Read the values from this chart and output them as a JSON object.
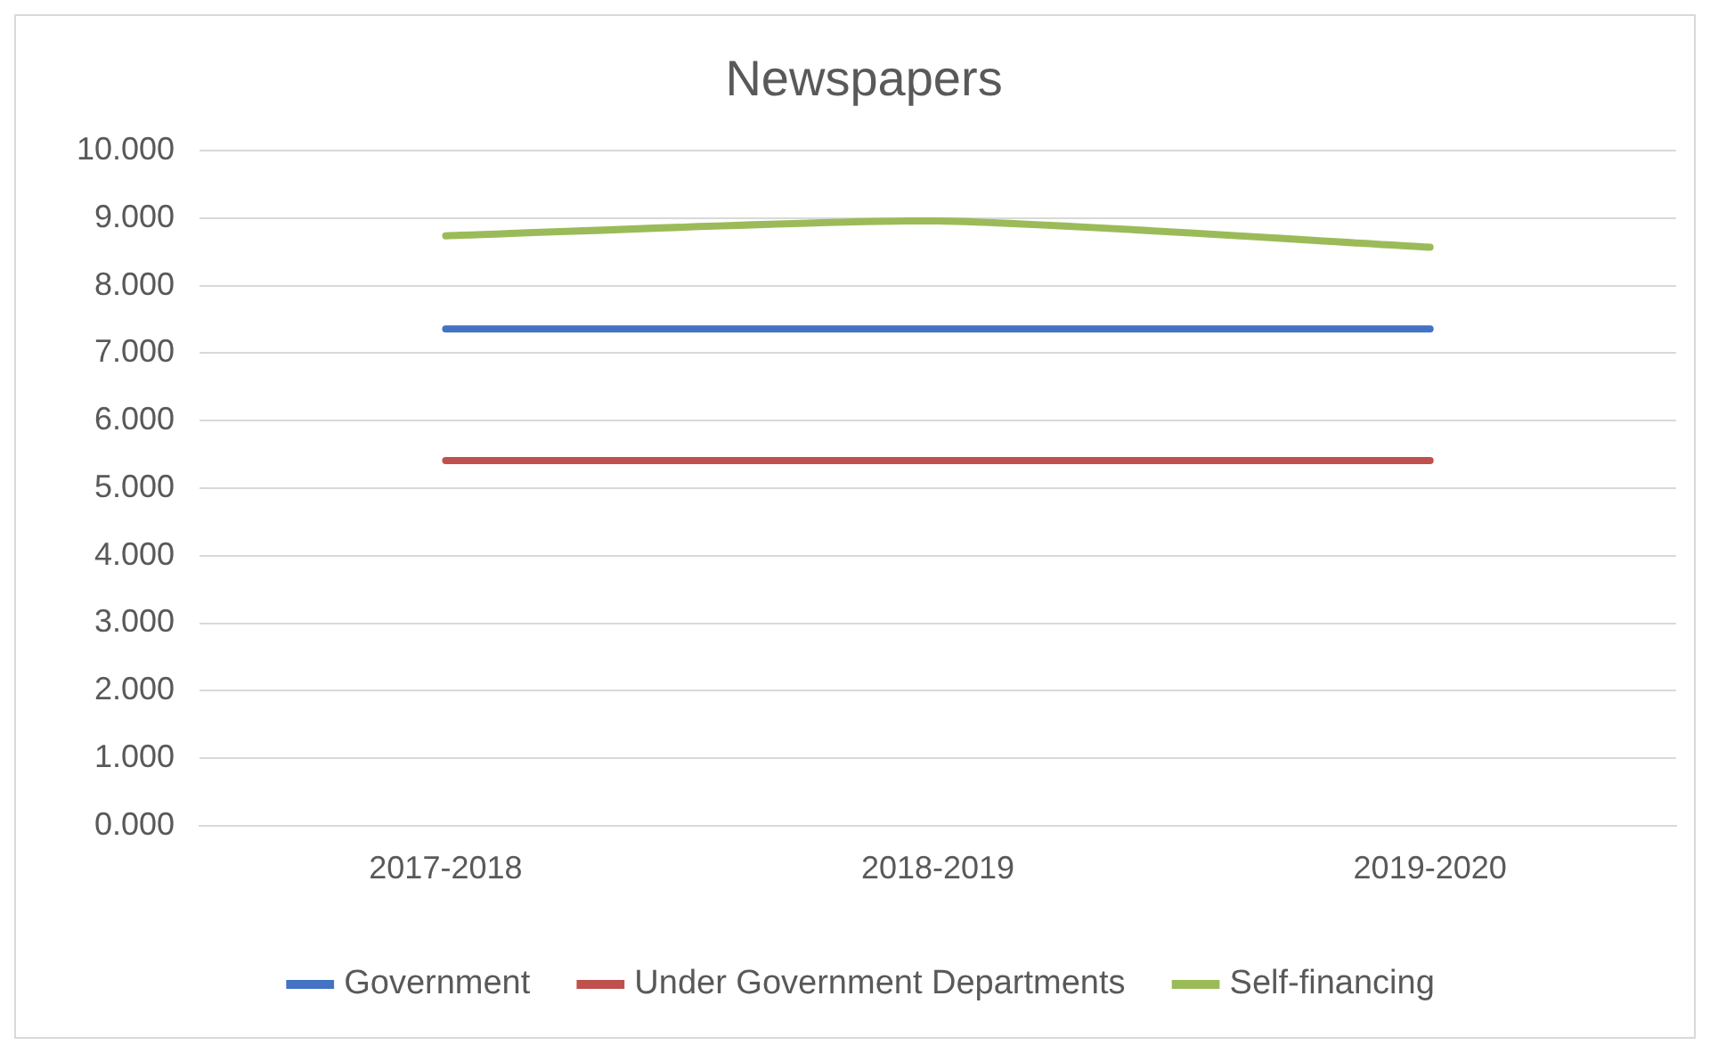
{
  "chart_data": {
    "type": "line",
    "title": "Newspapers",
    "categories": [
      "2017-2018",
      "2018-2019",
      "2019-2020"
    ],
    "series": [
      {
        "name": "Government",
        "color": "#4472c4",
        "values": [
          7.36,
          7.36,
          7.36
        ]
      },
      {
        "name": "Under Government Departments",
        "color": "#c0504d",
        "values": [
          5.41,
          5.41,
          5.41
        ]
      },
      {
        "name": "Self-financing",
        "color": "#9bbb59",
        "values": [
          8.74,
          8.96,
          8.57
        ]
      }
    ],
    "ylim": [
      0,
      10
    ],
    "yticks": [
      {
        "value": 0,
        "label": "0.000"
      },
      {
        "value": 1,
        "label": "1.000"
      },
      {
        "value": 2,
        "label": "2.000"
      },
      {
        "value": 3,
        "label": "3.000"
      },
      {
        "value": 4,
        "label": "4.000"
      },
      {
        "value": 5,
        "label": "5.000"
      },
      {
        "value": 6,
        "label": "6.000"
      },
      {
        "value": 7,
        "label": "7.000"
      },
      {
        "value": 8,
        "label": "8.000"
      },
      {
        "value": 9,
        "label": "9.000"
      },
      {
        "value": 10,
        "label": "10.000"
      }
    ],
    "grid": "y",
    "legend": "bottom",
    "marker": "none",
    "line_style": "solid"
  }
}
